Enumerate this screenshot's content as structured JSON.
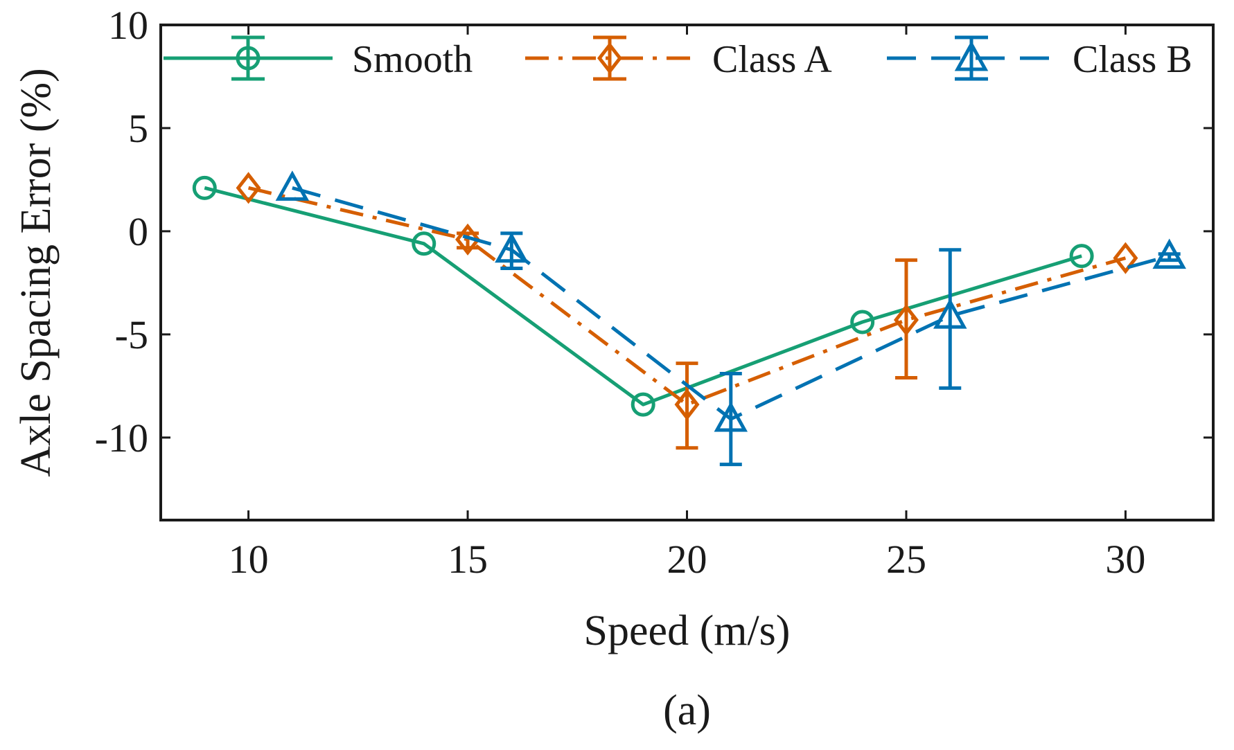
{
  "caption": "(a)",
  "colors": {
    "smooth": "#169f74",
    "classA": "#d55e00",
    "classB": "#0072b2",
    "axis": "#1a1a1a"
  },
  "chart_data": {
    "type": "line",
    "xlabel": "Speed (m/s)",
    "ylabel": "Axle Spacing Error (%)",
    "xlim": [
      8.0,
      32.0
    ],
    "ylim": [
      -14.0,
      10.0
    ],
    "xticks": [
      10,
      15,
      20,
      25,
      30
    ],
    "yticks": [
      10,
      5,
      0,
      -5,
      -10
    ],
    "xtick_labels": [
      "10",
      "15",
      "20",
      "25",
      "30"
    ],
    "ytick_labels": [
      "10",
      "5",
      "0",
      "-5",
      "-10"
    ],
    "grid": false,
    "legend_position": "top",
    "series": [
      {
        "name": "Smooth",
        "marker": "circle",
        "line": "solid",
        "x": [
          9,
          14,
          19,
          24,
          29
        ],
        "y": [
          2.1,
          -0.6,
          -8.4,
          -4.4,
          -1.2
        ],
        "err_low": [
          2.1,
          -0.6,
          -8.4,
          -4.4,
          -1.2
        ],
        "err_high": [
          2.1,
          -0.6,
          -8.4,
          -4.4,
          -1.2
        ]
      },
      {
        "name": "Class A",
        "marker": "diamond",
        "line": "dash-dot",
        "x": [
          10,
          15,
          20,
          25,
          30
        ],
        "y": [
          2.1,
          -0.4,
          -8.4,
          -4.3,
          -1.3
        ],
        "err_low": [
          2.1,
          -0.8,
          -10.5,
          -7.1,
          -1.3
        ],
        "err_high": [
          2.1,
          -0.1,
          -6.4,
          -1.4,
          -1.3
        ]
      },
      {
        "name": "Class B",
        "marker": "triangle",
        "line": "dashed",
        "x": [
          11,
          16,
          21,
          26,
          31
        ],
        "y": [
          2.1,
          -0.9,
          -9.1,
          -4.1,
          -1.2
        ],
        "err_low": [
          2.1,
          -1.8,
          -11.3,
          -7.6,
          -1.4
        ],
        "err_high": [
          2.1,
          -0.1,
          -6.9,
          -0.9,
          -1.1
        ]
      }
    ]
  }
}
